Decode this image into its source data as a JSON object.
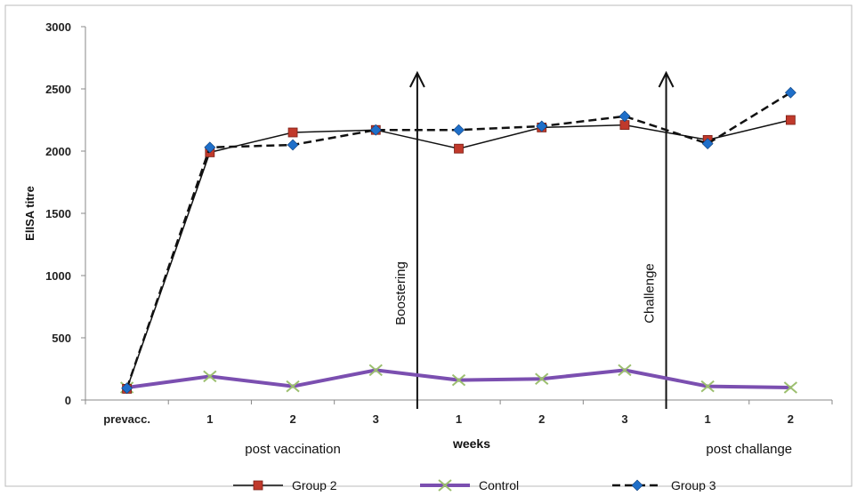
{
  "chart_data": {
    "type": "line",
    "title": "",
    "ylabel": "ElISA titre",
    "xlabel": "weeks",
    "ylim": [
      0,
      3000
    ],
    "y_ticks": [
      0,
      500,
      1000,
      1500,
      2000,
      2500,
      3000
    ],
    "categories": [
      "prevacc.",
      "1",
      "2",
      "3",
      "1",
      "2",
      "3",
      "1",
      "2"
    ],
    "category_groups": [
      {
        "label": "post vaccination",
        "from": 1,
        "to": 3
      },
      {
        "label": "post challange",
        "from": 7,
        "to": 8
      }
    ],
    "annotations": [
      {
        "label": "Boostering",
        "after_index": 3.5
      },
      {
        "label": "Challenge",
        "after_index": 6.5
      }
    ],
    "grid": false,
    "legend_position": "bottom",
    "series": [
      {
        "name": "Group 2",
        "color": "#c0392b",
        "line": "solid",
        "marker": "square",
        "values": [
          90,
          1990,
          2150,
          2170,
          2020,
          2190,
          2210,
          2090,
          2250
        ]
      },
      {
        "name": "Control",
        "color": "#7b4fb0",
        "line": "solid-thick",
        "marker": "x",
        "values": [
          100,
          190,
          110,
          240,
          160,
          170,
          240,
          110,
          100
        ]
      },
      {
        "name": "Group 3",
        "color": "#1f6fc9",
        "line": "dashed",
        "marker": "diamond",
        "values": [
          95,
          2030,
          2050,
          2170,
          2170,
          2200,
          2280,
          2060,
          2470
        ]
      }
    ]
  }
}
